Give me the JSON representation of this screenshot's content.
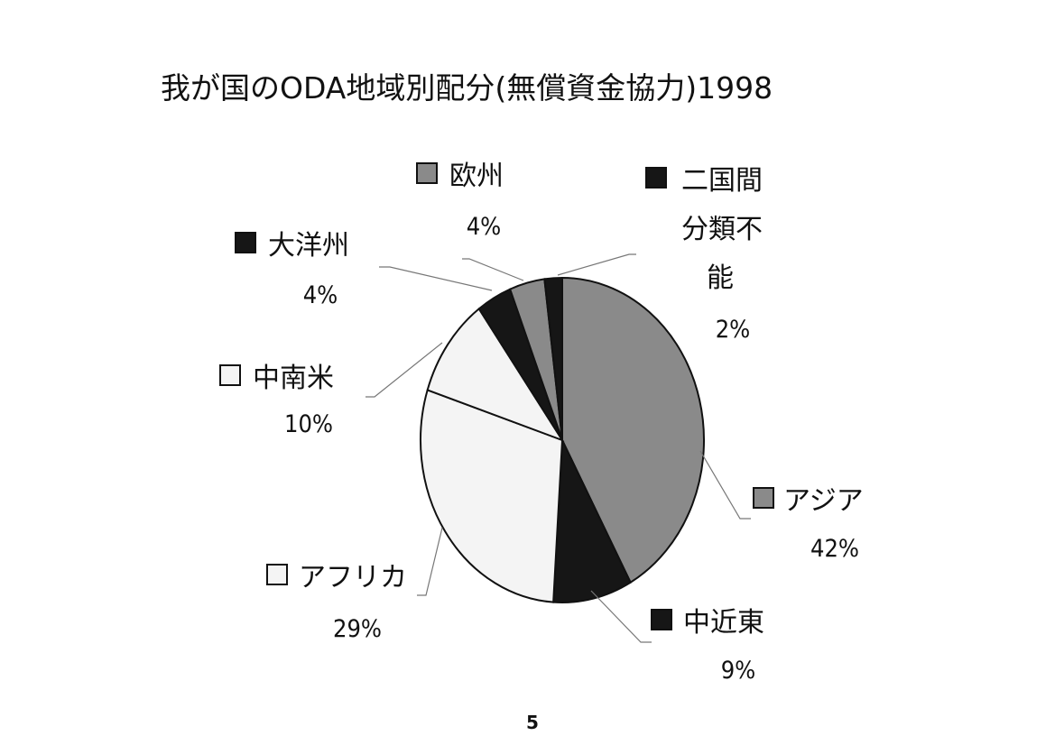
{
  "title": "我が国のODA地域別配分(無償資金協力)1998",
  "page_number": "5",
  "colors": {
    "dark": "#161616",
    "gray": "#8a8a8a",
    "white": "#f4f4f4",
    "outline": "#111111"
  },
  "chart_data": {
    "type": "pie",
    "title": "我が国のODA地域別配分(無償資金協力)1998",
    "unit": "%",
    "slices": [
      {
        "name": "アジア",
        "value": 42,
        "value_label": "42%",
        "fill": "gray"
      },
      {
        "name": "中近東",
        "value": 9,
        "value_label": "9%",
        "fill": "dark"
      },
      {
        "name": "アフリカ",
        "value": 29,
        "value_label": "29%",
        "fill": "white"
      },
      {
        "name": "中南米",
        "value": 10,
        "value_label": "10%",
        "fill": "white"
      },
      {
        "name": "大洋州",
        "value": 4,
        "value_label": "4%",
        "fill": "dark"
      },
      {
        "name": "欧州",
        "value": 4,
        "value_label": "4%",
        "fill": "gray"
      },
      {
        "name": "二国間分類不能",
        "name_lines": [
          "二国間",
          "分類不",
          "能"
        ],
        "value": 2,
        "value_label": "2%",
        "fill": "dark"
      }
    ]
  }
}
